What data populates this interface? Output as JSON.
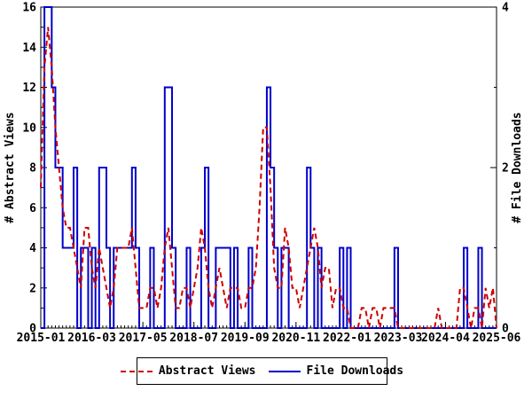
{
  "chart_data": {
    "type": "line",
    "title": "",
    "background": "#ffffff",
    "frame_color": "#000000",
    "x_start": "2015-01",
    "x_end": "2025-06",
    "months_count": 126,
    "x_major_ticks": {
      "labels": [
        "2015-01",
        "2016-03",
        "2017-05",
        "2018-07",
        "2019-09",
        "2020-11",
        "2022-01",
        "2023-03",
        "2024-04",
        "2025-06"
      ],
      "month_index": [
        0,
        14,
        28,
        42,
        56,
        70,
        84,
        98,
        111,
        125
      ]
    },
    "left_axis": {
      "label": "# Abstract Views",
      "min": 0,
      "max": 16,
      "major_step": 2,
      "minor_step": 1,
      "tick_labels": [
        "0",
        "2",
        "4",
        "6",
        "8",
        "10",
        "12",
        "14",
        "16"
      ]
    },
    "right_axis": {
      "label": "# File Downloads",
      "min": 0,
      "max": 4,
      "major_step": 2,
      "minor_step": 1,
      "tick_labels": [
        "0",
        "2",
        "4"
      ]
    },
    "grid": false,
    "legend_position": "bottom-center",
    "series": [
      {
        "name": "Abstract Views",
        "axis": "left",
        "color": "#cc0000",
        "style": "dashed",
        "line_shape": "linear",
        "values": [
          7,
          13,
          15,
          13,
          10,
          8,
          6,
          5,
          5,
          4,
          3,
          2,
          5,
          5,
          3,
          2,
          4,
          3,
          2,
          1,
          2,
          4,
          4,
          4,
          4,
          5,
          3,
          1,
          1,
          1,
          2,
          2,
          1,
          2,
          4,
          5,
          3,
          1,
          1,
          2,
          2,
          1,
          2,
          3,
          5,
          4,
          2,
          1,
          2,
          3,
          2,
          1,
          2,
          2,
          2,
          1,
          1,
          2,
          2,
          3,
          6,
          10,
          10,
          7,
          3,
          2,
          2,
          5,
          4,
          2,
          2,
          1,
          2,
          3,
          4,
          5,
          4,
          2,
          3,
          3,
          1,
          2,
          2,
          1,
          1,
          0,
          0,
          0,
          1,
          1,
          0,
          1,
          1,
          0,
          1,
          1,
          1,
          1,
          0,
          0,
          0,
          0,
          0,
          0,
          0,
          0,
          0,
          0,
          0,
          1,
          0,
          0,
          0,
          0,
          0,
          2,
          2,
          1,
          0,
          1,
          1,
          0,
          2,
          1,
          2,
          0
        ]
      },
      {
        "name": "File Downloads",
        "axis": "right",
        "color": "#0000cc",
        "style": "solid",
        "line_shape": "steps",
        "values": [
          0,
          4,
          4,
          3,
          2,
          2,
          1,
          1,
          1,
          2,
          0,
          1,
          1,
          0,
          1,
          0,
          2,
          2,
          1,
          0,
          1,
          1,
          1,
          1,
          1,
          2,
          1,
          0,
          0,
          0,
          1,
          0,
          0,
          0,
          3,
          3,
          1,
          0,
          0,
          0,
          1,
          0,
          0,
          0,
          1,
          2,
          0,
          0,
          1,
          1,
          1,
          1,
          0,
          1,
          0,
          0,
          0,
          1,
          0,
          0,
          0,
          0,
          3,
          2,
          1,
          0,
          1,
          1,
          0,
          0,
          0,
          0,
          0,
          2,
          1,
          0,
          1,
          0,
          0,
          0,
          0,
          0,
          1,
          0,
          1,
          0,
          0,
          0,
          0,
          0,
          0,
          0,
          0,
          0,
          0,
          0,
          0,
          1,
          0,
          0,
          0,
          0,
          0,
          0,
          0,
          0,
          0,
          0,
          0,
          0,
          0,
          0,
          0,
          0,
          0,
          0,
          1,
          0,
          0,
          0,
          1,
          0,
          0,
          0,
          0,
          0
        ]
      }
    ]
  },
  "legend": {
    "items": [
      {
        "label": "Abstract Views"
      },
      {
        "label": "File Downloads"
      }
    ]
  }
}
